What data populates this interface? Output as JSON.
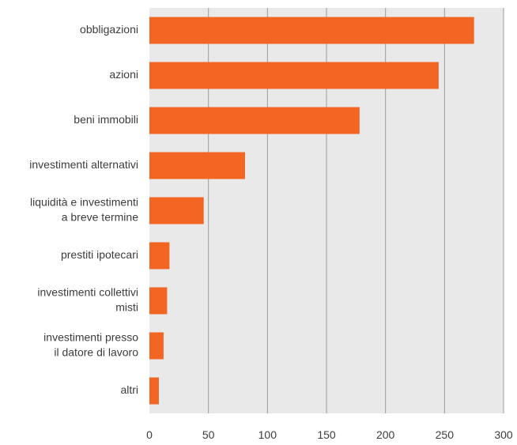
{
  "chart_data": {
    "type": "bar",
    "orientation": "horizontal",
    "categories": [
      [
        "obbligazioni"
      ],
      [
        "azioni"
      ],
      [
        "beni immobili"
      ],
      [
        "investimenti alternativi"
      ],
      [
        "liquidità e investimenti",
        "a breve termine"
      ],
      [
        "prestiti ipotecari"
      ],
      [
        "investimenti collettivi",
        "misti"
      ],
      [
        "investimenti presso",
        "il datore di lavoro"
      ],
      [
        "altri"
      ]
    ],
    "values": [
      275,
      245,
      178,
      81,
      46,
      17,
      15,
      12,
      8
    ],
    "xlim": [
      0,
      300
    ],
    "xticks": [
      0,
      50,
      100,
      150,
      200,
      250,
      300
    ],
    "grid": true,
    "colors": {
      "bar": "#f26522",
      "plot_bg": "#e9e9ea",
      "grid": "#9b9b9b",
      "text": "#3c3c3c"
    }
  }
}
